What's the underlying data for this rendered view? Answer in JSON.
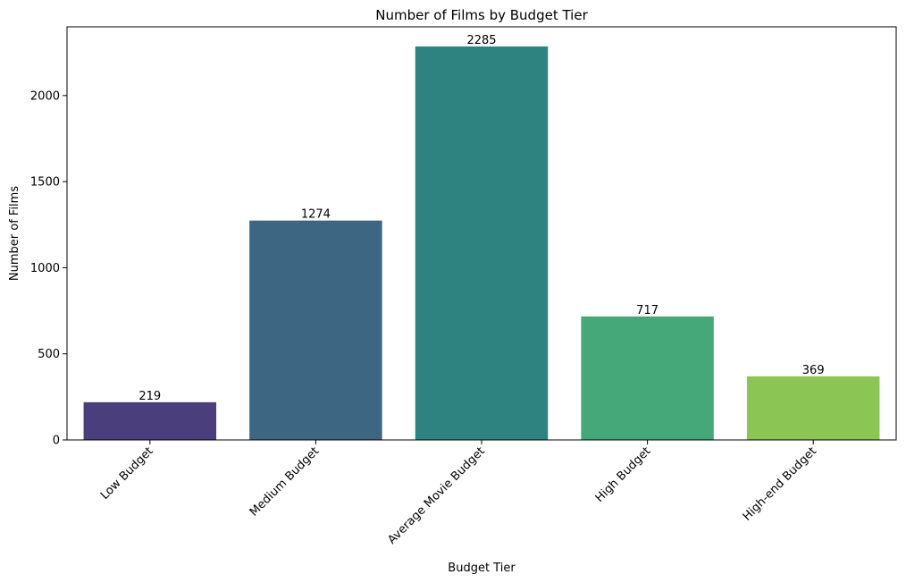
{
  "chart_data": {
    "type": "bar",
    "title": "Number of Films by Budget Tier",
    "xlabel": "Budget Tier",
    "ylabel": "Number of Films",
    "categories": [
      "Low Budget",
      "Medium Budget",
      "Average Movie Budget",
      "High Budget",
      "High-end Budget"
    ],
    "values": [
      219,
      1274,
      2285,
      717,
      369
    ],
    "data_labels": [
      "219",
      "1274",
      "2285",
      "717",
      "369"
    ],
    "colors": [
      "#4a3f7c",
      "#3d6683",
      "#2e8380",
      "#45a878",
      "#8bc553"
    ],
    "ylim": [
      0,
      2399
    ],
    "yticks": [
      0,
      500,
      1000,
      1500,
      2000
    ],
    "xtick_rotation": 45,
    "grid": false,
    "legend": "none"
  }
}
